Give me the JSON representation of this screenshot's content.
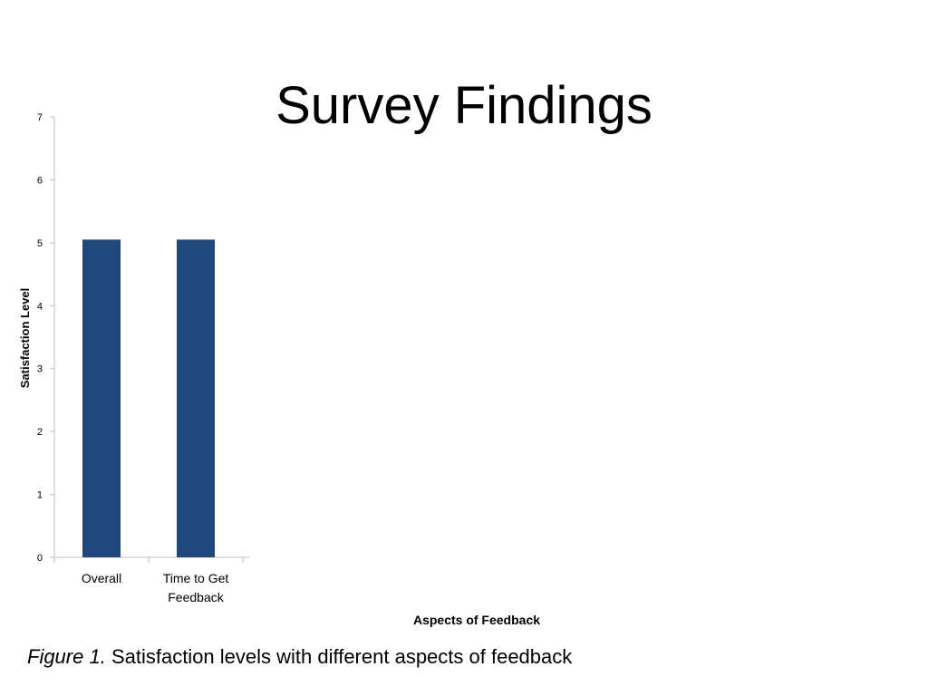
{
  "slide": {
    "title": "Survey Findings"
  },
  "caption": {
    "figure_label": "Figure 1.",
    "text": " Satisfaction levels with different aspects of feedback"
  },
  "chart_data": {
    "type": "bar",
    "title": "",
    "categories": [
      "Overall",
      "Time to Get Feedback"
    ],
    "category_lines": [
      [
        "Overall"
      ],
      [
        "Time to Get",
        "Feedback"
      ]
    ],
    "values": [
      5.05,
      5.05
    ],
    "xlabel": "Aspects of Feedback",
    "ylabel": "Satisfaction Level",
    "ylim": [
      0,
      7
    ],
    "yticks": [
      0,
      1,
      2,
      3,
      4,
      5,
      6,
      7
    ],
    "bar_color": "#1F497D",
    "axis_color": "#BFBFBF",
    "grid": false,
    "legend": "none"
  }
}
